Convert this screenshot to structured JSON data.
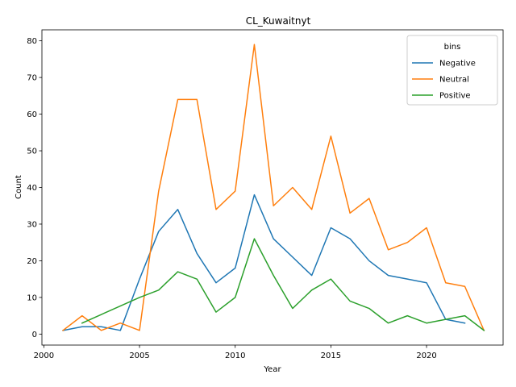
{
  "chart_data": {
    "type": "line",
    "title": "CL_Kuwaitnyt",
    "xlabel": "Year",
    "ylabel": "Count",
    "xlim": [
      1999.9,
      2024.0
    ],
    "ylim": [
      -3.0,
      83.0
    ],
    "xticks": [
      2000,
      2005,
      2010,
      2015,
      2020
    ],
    "yticks": [
      0,
      10,
      20,
      30,
      40,
      50,
      60,
      70,
      80
    ],
    "grid": false,
    "legend": {
      "title": "bins",
      "placement": "top-right"
    },
    "series": [
      {
        "name": "Negative",
        "color": "#1f77b4",
        "points": [
          [
            2001,
            1
          ],
          [
            2002,
            2
          ],
          [
            2003,
            2
          ],
          [
            2004,
            1
          ],
          [
            2005,
            15
          ],
          [
            2006,
            28
          ],
          [
            2007,
            34
          ],
          [
            2008,
            22
          ],
          [
            2009,
            14
          ],
          [
            2010,
            18
          ],
          [
            2011,
            38
          ],
          [
            2012,
            26
          ],
          [
            2013,
            21
          ],
          [
            2014,
            16
          ],
          [
            2015,
            29
          ],
          [
            2016,
            26
          ],
          [
            2017,
            20
          ],
          [
            2018,
            16
          ],
          [
            2019,
            15
          ],
          [
            2020,
            14
          ],
          [
            2021,
            4
          ],
          [
            2022,
            3
          ]
        ]
      },
      {
        "name": "Neutral",
        "color": "#ff7f0e",
        "points": [
          [
            2001,
            1
          ],
          [
            2002,
            5
          ],
          [
            2003,
            1
          ],
          [
            2004,
            3
          ],
          [
            2005,
            1
          ],
          [
            2006,
            39
          ],
          [
            2007,
            64
          ],
          [
            2008,
            64
          ],
          [
            2009,
            34
          ],
          [
            2010,
            39
          ],
          [
            2011,
            79
          ],
          [
            2012,
            35
          ],
          [
            2013,
            40
          ],
          [
            2014,
            34
          ],
          [
            2015,
            54
          ],
          [
            2016,
            33
          ],
          [
            2017,
            37
          ],
          [
            2018,
            23
          ],
          [
            2019,
            25
          ],
          [
            2020,
            29
          ],
          [
            2021,
            14
          ],
          [
            2022,
            13
          ],
          [
            2023,
            1
          ]
        ]
      },
      {
        "name": "Positive",
        "color": "#2ca02c",
        "points": [
          [
            2002,
            3
          ],
          [
            2005,
            10
          ],
          [
            2006,
            12
          ],
          [
            2007,
            17
          ],
          [
            2008,
            15
          ],
          [
            2009,
            6
          ],
          [
            2010,
            10
          ],
          [
            2011,
            26
          ],
          [
            2012,
            16
          ],
          [
            2013,
            7
          ],
          [
            2014,
            12
          ],
          [
            2015,
            15
          ],
          [
            2016,
            9
          ],
          [
            2017,
            7
          ],
          [
            2018,
            3
          ],
          [
            2019,
            5
          ],
          [
            2020,
            3
          ],
          [
            2021,
            4
          ],
          [
            2022,
            5
          ],
          [
            2023,
            1
          ]
        ]
      }
    ]
  }
}
